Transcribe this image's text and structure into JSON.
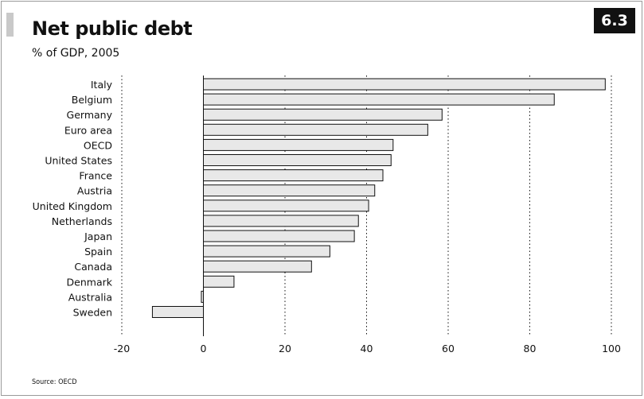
{
  "header": {
    "title": "Net public debt",
    "subtitle": "% of GDP, 2005",
    "chart_number": "6.3"
  },
  "footer": {
    "source": "Source: OECD"
  },
  "colors": {
    "bar_fill": "#e8e8e8",
    "bar_stroke": "#111111",
    "badge_background": "#111111",
    "badge_text": "#ffffff"
  },
  "chart_data": {
    "type": "bar",
    "orientation": "horizontal",
    "title": "Net public debt",
    "subtitle": "% of GDP, 2005",
    "categories": [
      "Italy",
      "Belgium",
      "Germany",
      "Euro area",
      "OECD",
      "United States",
      "France",
      "Austria",
      "United Kingdom",
      "Netherlands",
      "Japan",
      "Spain",
      "Canada",
      "Denmark",
      "Australia",
      "Sweden"
    ],
    "values": [
      98.5,
      86,
      58.5,
      55,
      46.5,
      46,
      44,
      42,
      40.5,
      38,
      37,
      31,
      26.5,
      7.5,
      -0.5,
      -12.5
    ],
    "xlim": [
      -20,
      100
    ],
    "xticks": [
      "-20",
      "0",
      "20",
      "40",
      "60",
      "80",
      "100"
    ],
    "xtick_values": [
      -20,
      0,
      20,
      40,
      60,
      80,
      100
    ],
    "grid": "vertical dotted",
    "source": "Source: OECD"
  }
}
